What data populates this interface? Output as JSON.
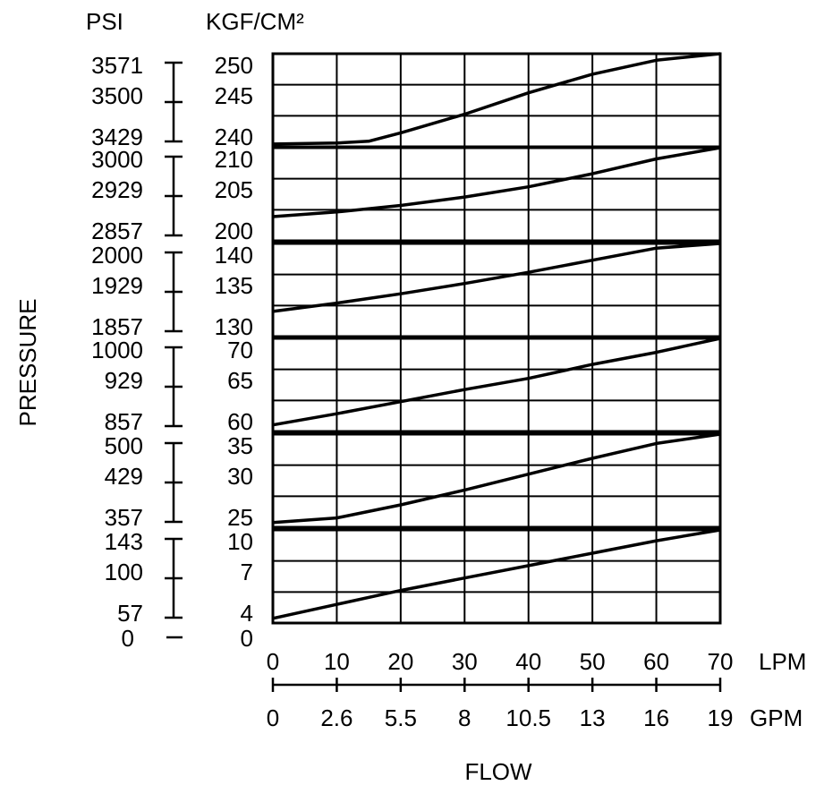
{
  "chart_data": {
    "type": "line",
    "ylabel": "PRESSURE",
    "xlabel": "FLOW",
    "psi_header": "PSI",
    "kgf_header": "KGF/CM²",
    "x_unit_lpm": "LPM",
    "x_unit_gpm": "GPM",
    "x_ticks_lpm": [
      "0",
      "10",
      "20",
      "30",
      "40",
      "50",
      "60",
      "70"
    ],
    "x_ticks_gpm": [
      "0",
      "2.6",
      "5.5",
      "8",
      "10.5",
      "13",
      "16",
      "19"
    ],
    "xlim": [
      0,
      70
    ],
    "zero_psi": "0",
    "zero_kgf": "0",
    "grid": true,
    "panels": [
      {
        "psi_labels": [
          "3571",
          "3500",
          "3429"
        ],
        "kgf_labels": [
          "250",
          "245",
          "240"
        ],
        "ylim": [
          240,
          250
        ],
        "x": [
          0,
          10,
          15,
          20,
          30,
          40,
          50,
          60,
          70
        ],
        "y": [
          240.3,
          240.4,
          240.6,
          241.5,
          243.5,
          245.8,
          247.8,
          249.3,
          250
        ]
      },
      {
        "psi_labels": [
          "3000",
          "2929",
          "2857"
        ],
        "kgf_labels": [
          "210",
          "205",
          "200"
        ],
        "ylim": [
          200,
          210
        ],
        "x": [
          0,
          10,
          20,
          30,
          40,
          50,
          60,
          70
        ],
        "y": [
          202.6,
          203.1,
          203.8,
          204.7,
          205.8,
          207.2,
          208.8,
          210
        ]
      },
      {
        "psi_labels": [
          "2000",
          "1929",
          "1857"
        ],
        "kgf_labels": [
          "140",
          "135",
          "130"
        ],
        "ylim": [
          130,
          140
        ],
        "x": [
          0,
          10,
          20,
          30,
          40,
          50,
          60,
          70
        ],
        "y": [
          132.7,
          133.6,
          134.6,
          135.7,
          136.9,
          138.2,
          139.5,
          140
        ]
      },
      {
        "psi_labels": [
          "1000",
          "929",
          "857"
        ],
        "kgf_labels": [
          "70",
          "65",
          "60"
        ],
        "ylim": [
          60,
          70
        ],
        "x": [
          0,
          10,
          20,
          30,
          40,
          50,
          60,
          70
        ],
        "y": [
          60.7,
          61.9,
          63.2,
          64.5,
          65.7,
          67.2,
          68.5,
          70
        ]
      },
      {
        "psi_labels": [
          "500",
          "429",
          "357"
        ],
        "kgf_labels": [
          "35",
          "30",
          "25"
        ],
        "ylim": [
          25,
          35
        ],
        "x": [
          0,
          10,
          20,
          30,
          40,
          50,
          60,
          70
        ],
        "y": [
          25.5,
          26.0,
          27.4,
          29.0,
          30.7,
          32.4,
          34.0,
          35
        ]
      },
      {
        "psi_labels": [
          "143",
          "100",
          "57"
        ],
        "kgf_labels": [
          "10",
          "7",
          "4"
        ],
        "ylim": [
          4,
          10
        ],
        "x": [
          0,
          10,
          20,
          30,
          40,
          50,
          60,
          70
        ],
        "y": [
          4.3,
          5.2,
          6.1,
          6.9,
          7.7,
          8.5,
          9.3,
          10
        ]
      }
    ]
  }
}
